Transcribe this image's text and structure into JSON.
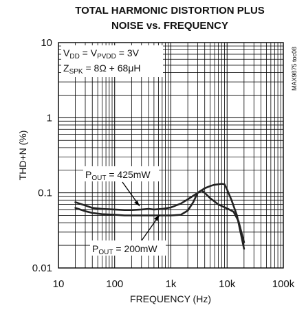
{
  "chart_data": {
    "type": "line",
    "title_line1": "TOTAL HARMONIC DISTORTION PLUS",
    "title_line2": "NOISE vs. FREQUENCY",
    "xlabel": "FREQUENCY (Hz)",
    "ylabel": "THD+N (%)",
    "x_scale": "log",
    "y_scale": "log",
    "xlim": [
      10,
      100000
    ],
    "ylim": [
      0.01,
      10
    ],
    "x_tick_labels": [
      "10",
      "100",
      "1k",
      "10k",
      "100k"
    ],
    "y_tick_labels": [
      "0.01",
      "0.1",
      "1",
      "10"
    ],
    "grid": true,
    "conditions": {
      "vdd": {
        "main": "V",
        "sub": "DD",
        "mid": " = V",
        "sub2": "PVDD",
        "tail": " = 3V"
      },
      "zspk": {
        "main": "Z",
        "sub": "SPK",
        "tail": " = 8Ω + 68μH"
      }
    },
    "part_code": "MAX9875 toc08",
    "series": [
      {
        "name_main": "P",
        "name_sub": "OUT",
        "name_tail": " = 425mW",
        "x": [
          20,
          30,
          40,
          60,
          100,
          150,
          200,
          300,
          400,
          500,
          700,
          1000,
          1500,
          2000,
          3000,
          4000,
          5000,
          6000,
          7000,
          8000,
          9000,
          10000,
          12000,
          15000,
          20000
        ],
        "y": [
          0.075,
          0.068,
          0.063,
          0.061,
          0.06,
          0.059,
          0.059,
          0.06,
          0.061,
          0.06,
          0.061,
          0.064,
          0.072,
          0.082,
          0.1,
          0.115,
          0.123,
          0.128,
          0.13,
          0.132,
          0.13,
          0.11,
          0.08,
          0.05,
          0.018
        ]
      },
      {
        "name_main": "P",
        "name_sub": "OUT",
        "name_tail": " = 200mW",
        "x": [
          20,
          30,
          40,
          60,
          100,
          150,
          200,
          300,
          400,
          500,
          700,
          1000,
          1500,
          2000,
          2500,
          3000,
          3500,
          4000,
          5000,
          7000,
          10000,
          13000,
          16000,
          20000
        ],
        "y": [
          0.063,
          0.057,
          0.054,
          0.052,
          0.051,
          0.05,
          0.05,
          0.05,
          0.05,
          0.05,
          0.05,
          0.05,
          0.051,
          0.058,
          0.075,
          0.1,
          0.108,
          0.1,
          0.085,
          0.07,
          0.062,
          0.056,
          0.042,
          0.022
        ]
      }
    ]
  }
}
